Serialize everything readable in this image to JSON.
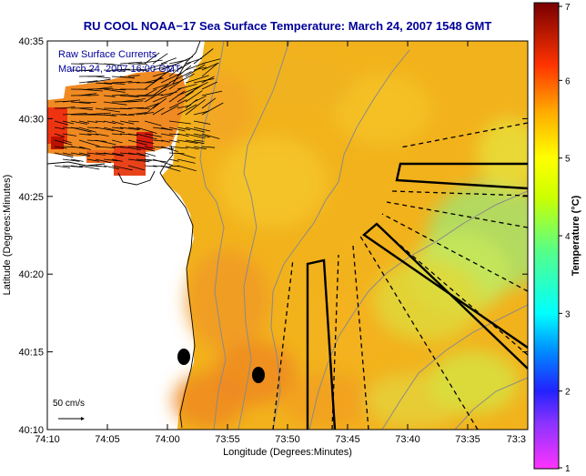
{
  "title": "RU COOL  NOAA−17  Sea Surface Temperature:  March 24, 2007 1548 GMT",
  "annotations": {
    "currents_label_line1": "Raw Surface Currents",
    "currents_label_line2": "March 24, 2007 16:00 GMT",
    "scale_label": "50 cm/s"
  },
  "axes": {
    "xlabel": "Longitude (Degrees:Minutes)",
    "ylabel": "Latitude (Degrees:Minutes)",
    "xticks": [
      "74:10",
      "74:05",
      "74:00",
      "73:55",
      "73:50",
      "73:45",
      "73:40",
      "73:35",
      "73:3"
    ],
    "yticks": [
      "40:35",
      "40:30",
      "40:25",
      "40:20",
      "40:15",
      "40:10"
    ]
  },
  "colorbar": {
    "label": "Temperature (°C)",
    "ticks": [
      "7",
      "6",
      "5",
      "4",
      "3",
      "2",
      "1"
    ],
    "range": [
      1,
      7
    ],
    "stops": [
      {
        "v": 1.0,
        "c": "#ff33ff"
      },
      {
        "v": 1.6,
        "c": "#8833ff"
      },
      {
        "v": 2.0,
        "c": "#2222ff"
      },
      {
        "v": 2.5,
        "c": "#0088ff"
      },
      {
        "v": 3.0,
        "c": "#00ffff"
      },
      {
        "v": 3.8,
        "c": "#55ff88"
      },
      {
        "v": 4.5,
        "c": "#ccff00"
      },
      {
        "v": 5.0,
        "c": "#ffff00"
      },
      {
        "v": 5.6,
        "c": "#ffaa00"
      },
      {
        "v": 6.2,
        "c": "#ff3300"
      },
      {
        "v": 7.0,
        "c": "#770000"
      }
    ]
  },
  "colors": {
    "sst_main": "#f2b21c",
    "sst_warm": "#f08a22",
    "sst_cool": "#a8e06a",
    "land": "#ffffff",
    "label_blue": "#000099",
    "outline": "#000000",
    "contour": "#8a8a8a"
  }
}
